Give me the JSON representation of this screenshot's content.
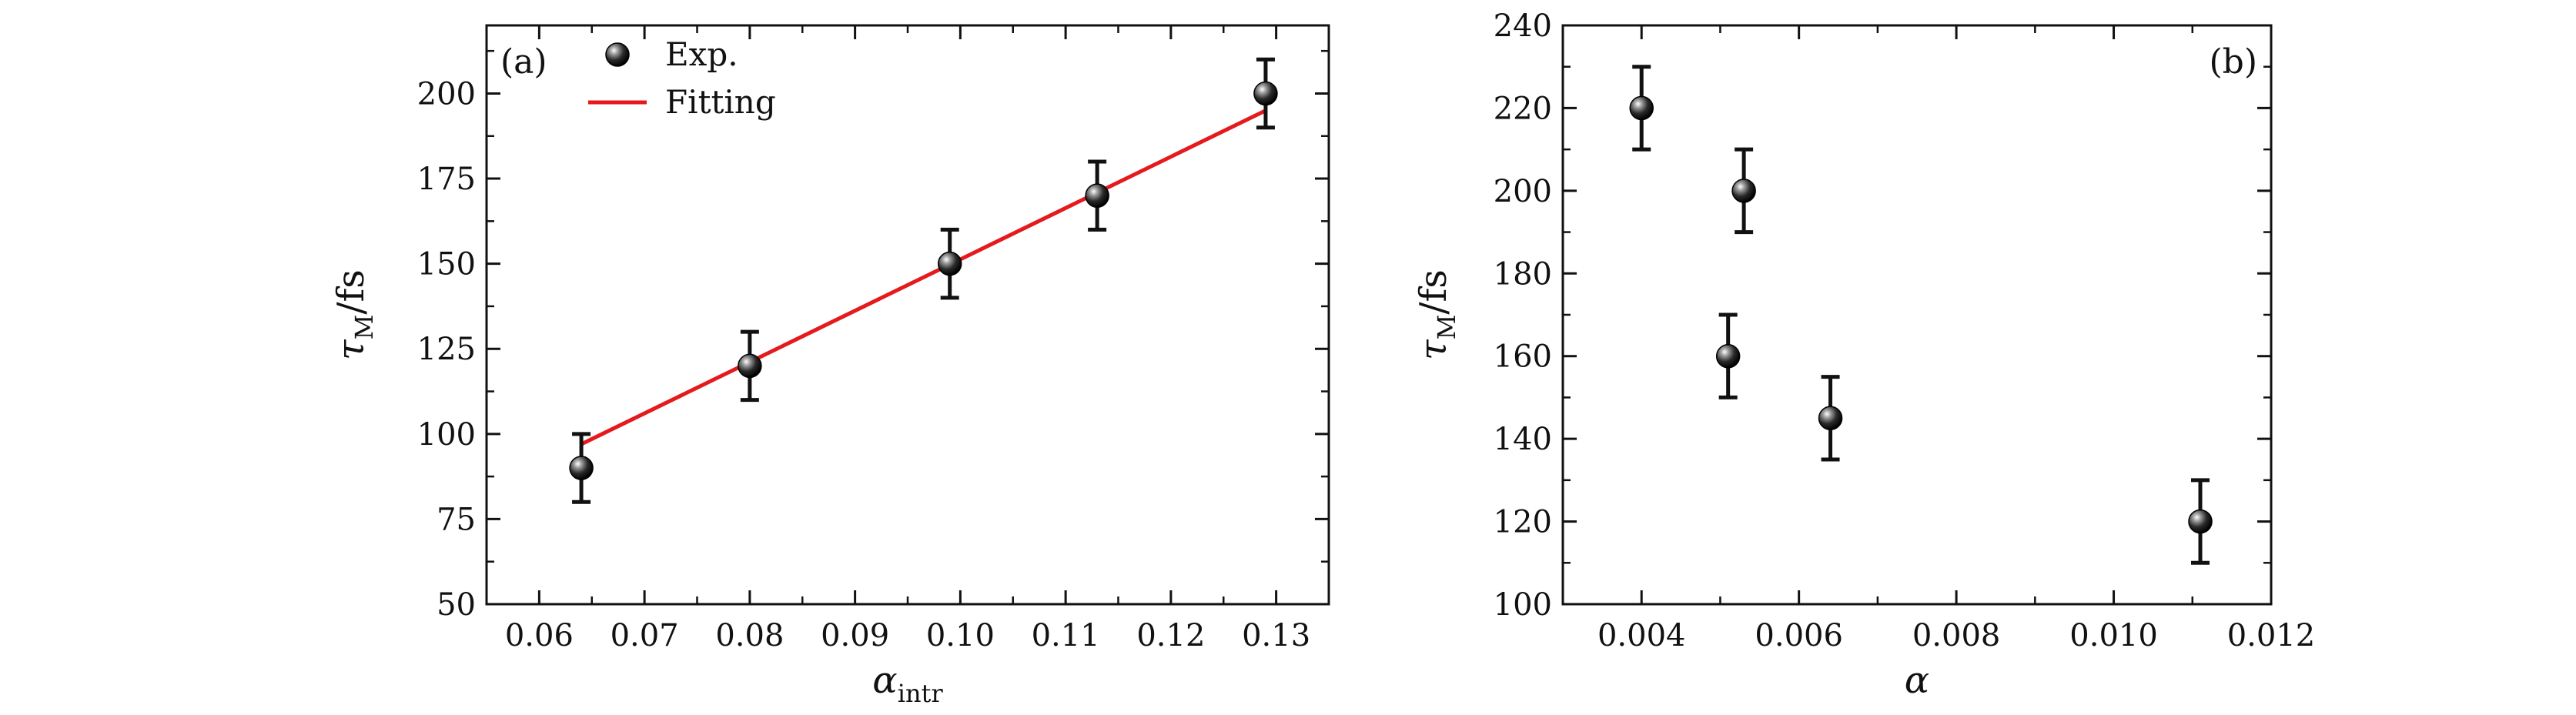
{
  "chart_data": [
    {
      "type": "scatter",
      "panel_label": "(a)",
      "xlabel": {
        "main": "α",
        "sub": "intr"
      },
      "ylabel": {
        "main": "τ",
        "sub": "M",
        "suffix": "/fs"
      },
      "xlim": [
        0.055,
        0.135
      ],
      "ylim": [
        50,
        220
      ],
      "xticks": [
        "0.06",
        "0.07",
        "0.08",
        "0.09",
        "0.10",
        "0.11",
        "0.12",
        "0.13"
      ],
      "xtick_values": [
        0.06,
        0.07,
        0.08,
        0.09,
        0.1,
        0.11,
        0.12,
        0.13
      ],
      "yticks": [
        "50",
        "75",
        "100",
        "125",
        "150",
        "175",
        "200"
      ],
      "ytick_values": [
        50,
        75,
        100,
        125,
        150,
        175,
        200
      ],
      "legend": {
        "placement": "top-left",
        "entries": [
          "Exp.",
          "Fitting"
        ]
      },
      "series": [
        {
          "name": "Exp.",
          "kind": "points-with-errorbars",
          "x": [
            0.064,
            0.08,
            0.099,
            0.113,
            0.129
          ],
          "y": [
            90,
            120,
            150,
            170,
            200
          ],
          "err": [
            10,
            10,
            10,
            10,
            10
          ]
        },
        {
          "name": "Fitting",
          "kind": "line",
          "color": "#e41a1c",
          "x": [
            0.064,
            0.129
          ],
          "y": [
            97,
            195
          ]
        }
      ]
    },
    {
      "type": "scatter",
      "panel_label": "(b)",
      "xlabel": {
        "main": "α",
        "sub": ""
      },
      "ylabel": {
        "main": "τ",
        "sub": "M",
        "suffix": "/fs"
      },
      "xlim": [
        0.003,
        0.012
      ],
      "ylim": [
        100,
        240
      ],
      "xticks": [
        "0.004",
        "0.006",
        "0.008",
        "0.010",
        "0.012"
      ],
      "xtick_values": [
        0.004,
        0.006,
        0.008,
        0.01,
        0.012
      ],
      "yticks": [
        "100",
        "120",
        "140",
        "160",
        "180",
        "200",
        "220",
        "240"
      ],
      "ytick_values": [
        100,
        120,
        140,
        160,
        180,
        200,
        220,
        240
      ],
      "series": [
        {
          "kind": "points-with-errorbars",
          "x": [
            0.004,
            0.0051,
            0.0053,
            0.0064,
            0.0111
          ],
          "y": [
            220,
            160,
            200,
            145,
            120
          ],
          "err": [
            10,
            10,
            10,
            10,
            10
          ]
        }
      ]
    }
  ],
  "colors": {
    "axis": "#111111",
    "point": "#111111",
    "fit_line": "#e41a1c"
  }
}
